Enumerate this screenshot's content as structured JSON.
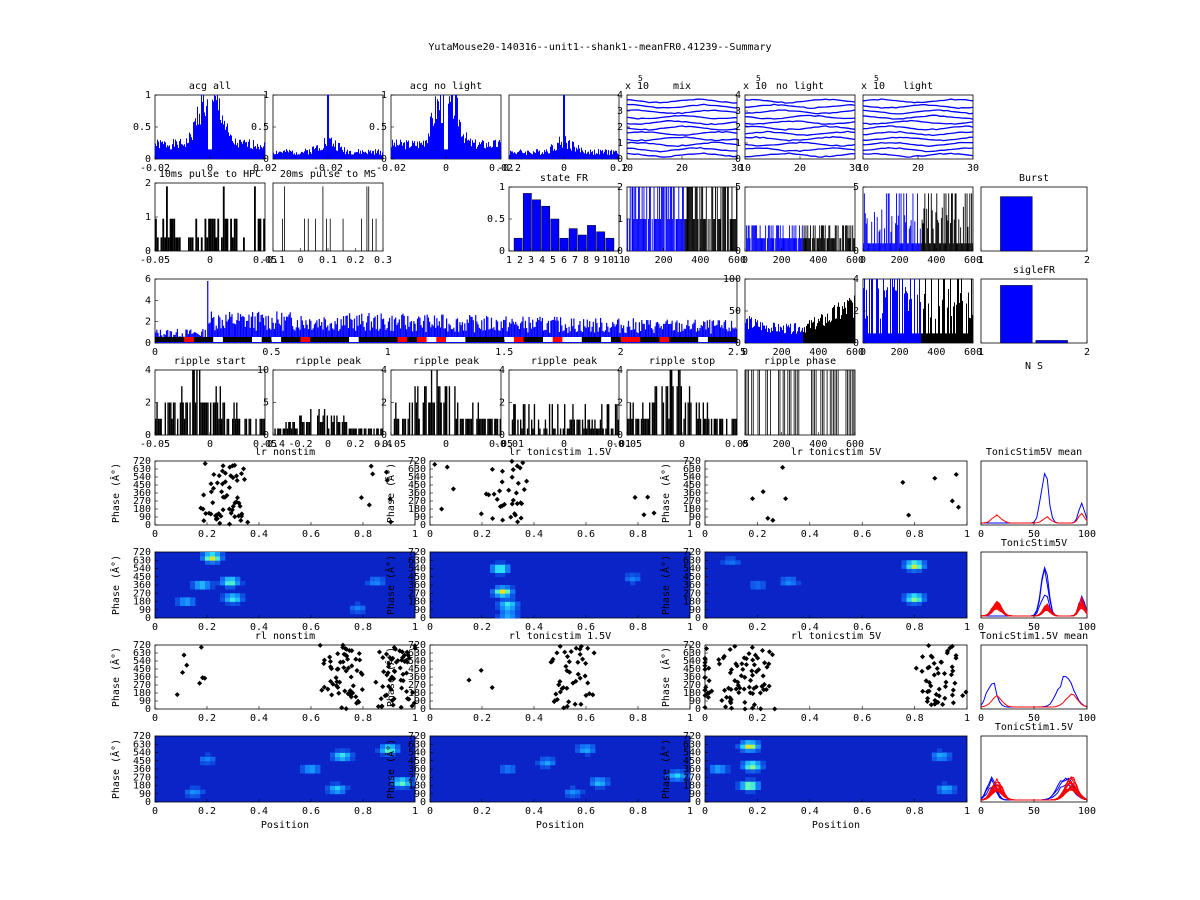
{
  "figure": {
    "title": "YutaMouse20-140316--unit1--shank1--meanFR0.41239--Summary"
  },
  "colors": {
    "blue": "#0000ff",
    "red": "#ff0000",
    "black": "#000000",
    "heat_bg": "#0a24c8",
    "heat_mid": "#22c8ff",
    "heat_hi": "#ffdc00"
  },
  "chart_data": [
    {
      "id": "acg_all",
      "type": "bar",
      "title": "acg all",
      "color": "blue",
      "seed": 1,
      "n": 110,
      "shape": "acg_wide",
      "xticks": [
        "-0.02",
        "0",
        "0.02"
      ],
      "yticks": [
        "0",
        "0.5",
        "1"
      ],
      "ylim": [
        0,
        1
      ]
    },
    {
      "id": "acg_all_light",
      "type": "bar",
      "title": "",
      "color": "blue",
      "seed": 2,
      "n": 110,
      "shape": "acg_narrow",
      "xticks": [
        "-0.02"
      ],
      "yticks": [
        "0",
        "0.5",
        "1"
      ],
      "ylim": [
        0,
        1
      ]
    },
    {
      "id": "acg_no_light",
      "type": "bar",
      "title": "acg no light",
      "color": "blue",
      "seed": 3,
      "n": 110,
      "shape": "acg_wide",
      "xticks": [
        "-0.02",
        "0",
        "0.02"
      ],
      "yticks": [
        "0",
        "0.5",
        "1"
      ],
      "ylim": [
        0,
        1
      ]
    },
    {
      "id": "acg_light",
      "type": "bar",
      "title": "",
      "color": "blue",
      "seed": 4,
      "n": 110,
      "shape": "acg_narrow",
      "xticks": [
        "-0.2",
        "0",
        "0.2"
      ],
      "yticks": [],
      "ylim": [
        0,
        1
      ]
    },
    {
      "id": "wave_mix",
      "type": "line",
      "title": "mix",
      "exponent_label": "x 10",
      "exponent": "5",
      "color": "blue",
      "seed": 5,
      "nlines": 11,
      "xticks": [
        "10",
        "20",
        "30"
      ],
      "yticks": [
        "0",
        "1",
        "2",
        "3",
        "4"
      ]
    },
    {
      "id": "wave_no_light",
      "type": "line",
      "title": "no light",
      "exponent_label": "x 10",
      "exponent": "5",
      "color": "blue",
      "seed": 6,
      "nlines": 11,
      "xticks": [
        "10",
        "20",
        "30"
      ],
      "yticks": [
        "0",
        "1",
        "2",
        "3",
        "4"
      ]
    },
    {
      "id": "wave_light",
      "type": "line",
      "title": "light",
      "exponent_label": "x 10",
      "exponent": "5",
      "color": "blue",
      "seed": 7,
      "nlines": 11,
      "xticks": [
        "10",
        "20",
        "30"
      ],
      "yticks": []
    },
    {
      "id": "pulse_hpc",
      "type": "bar",
      "title": "10ms pulse to HPC",
      "color": "black",
      "seed": 8,
      "n": 60,
      "shape": "sparse_high",
      "xticks": [
        "-0.05",
        "0",
        "0.05"
      ],
      "yticks": [
        "0",
        "1",
        "2"
      ],
      "ylim": [
        0,
        2
      ]
    },
    {
      "id": "pulse_ms",
      "type": "bar",
      "title": "20ms pulse to MS",
      "color": "black",
      "seed": 9,
      "n": 60,
      "shape": "very_sparse",
      "xticks": [
        "-0.1",
        "0",
        "0.1",
        "0.2",
        "0.3"
      ],
      "yticks": [],
      "ylim": [
        0,
        2
      ]
    },
    {
      "id": "state_fr",
      "type": "bar",
      "title": "state FR",
      "color": "blue",
      "categories": [
        "1",
        "2",
        "3",
        "4",
        "5",
        "6",
        "7",
        "8",
        "9",
        "10",
        "11"
      ],
      "values": [
        0.2,
        0.9,
        0.8,
        0.7,
        0.5,
        0.2,
        0.35,
        0.25,
        0.4,
        0.3,
        0.2
      ],
      "xticks": [
        "1",
        "2",
        "3",
        "4",
        "5",
        "6",
        "7",
        "8",
        "9",
        "10",
        "11"
      ],
      "yticks": [
        "0",
        "0.5",
        "1"
      ],
      "ylim": [
        0,
        1
      ]
    },
    {
      "id": "fr_time_1",
      "type": "bar",
      "title": "",
      "color": "split",
      "seed": 10,
      "n": 120,
      "shape": "dense",
      "xticks": [
        "0",
        "200",
        "400",
        "600"
      ],
      "yticks": [
        "0",
        "1",
        "2"
      ],
      "ylim": [
        0,
        2
      ]
    },
    {
      "id": "fr_time_2",
      "type": "bar",
      "title": "",
      "color": "split",
      "seed": 11,
      "n": 120,
      "shape": "dense",
      "xticks": [
        "0",
        "200",
        "400",
        "600"
      ],
      "yticks": [
        "0",
        "5"
      ],
      "ylim": [
        0,
        5
      ]
    },
    {
      "id": "fr_time_3",
      "type": "bar",
      "title": "",
      "color": "split",
      "seed": 12,
      "n": 120,
      "shape": "dense_sparse",
      "xticks": [
        "0",
        "200",
        "400",
        "600"
      ],
      "yticks": [
        "0",
        "5"
      ],
      "ylim": [
        0,
        5
      ]
    },
    {
      "id": "burst",
      "type": "bar",
      "title": "Burst",
      "color": "blue",
      "categories": [
        "1",
        "2"
      ],
      "values": [
        0.85,
        0
      ],
      "xticks": [
        "1",
        "2"
      ],
      "yticks": [],
      "ylim": [
        0,
        1
      ]
    },
    {
      "id": "session_fr",
      "type": "bar",
      "title": "",
      "color": "blue",
      "seed": 13,
      "n": 480,
      "shape": "session",
      "xticks": [
        "0",
        "0.5",
        "1",
        "1.5",
        "2",
        "2.5"
      ],
      "yticks": [
        "0",
        "2",
        "4",
        "6"
      ],
      "ylim": [
        0,
        6.5
      ]
    },
    {
      "id": "fr_split_a",
      "type": "bar",
      "title": "",
      "color": "split",
      "seed": 14,
      "n": 110,
      "shape": "ramp",
      "xticks": [
        "0",
        "200",
        "400",
        "600"
      ],
      "yticks": [
        "0",
        "50",
        "100"
      ],
      "ylim": [
        0,
        100
      ]
    },
    {
      "id": "fr_split_b",
      "type": "bar",
      "title": "",
      "color": "split",
      "seed": 15,
      "n": 110,
      "shape": "dense_sparse",
      "xticks": [
        "0",
        "200",
        "400",
        "600"
      ],
      "yticks": [
        "0",
        "2",
        "4"
      ],
      "ylim": [
        0,
        4
      ]
    },
    {
      "id": "sigle_fr",
      "type": "bar",
      "title": "sigleFR",
      "color": "blue",
      "categories": [
        "1",
        "2"
      ],
      "values": [
        0.9,
        0.04
      ],
      "xticks": [
        "1",
        "2"
      ],
      "xlabel": "N S",
      "yticks": [],
      "ylim": [
        0,
        1
      ]
    },
    {
      "id": "ripple_start",
      "type": "bar",
      "title": "ripple start",
      "color": "black",
      "seed": 16,
      "n": 80,
      "shape": "ripple",
      "xticks": [
        "-0.05",
        "0",
        "0.05"
      ],
      "yticks": [
        "0",
        "2",
        "4"
      ],
      "ylim": [
        0,
        4
      ]
    },
    {
      "id": "ripple_peak_1",
      "type": "bar",
      "title": "ripple peak",
      "color": "black",
      "seed": 17,
      "n": 80,
      "shape": "ripple",
      "xticks": [
        "-0.4",
        "-0.2",
        "0",
        "0.2",
        "0.4"
      ],
      "yticks": [
        "0",
        "5",
        "10"
      ],
      "ylim": [
        0,
        10
      ]
    },
    {
      "id": "ripple_peak_2",
      "type": "bar",
      "title": "ripple peak",
      "color": "black",
      "seed": 18,
      "n": 80,
      "shape": "ripple",
      "xticks": [
        "-0.05",
        "0",
        "0.05"
      ],
      "yticks": [
        "0",
        "2",
        "4"
      ],
      "ylim": [
        0,
        4
      ]
    },
    {
      "id": "ripple_peak_3",
      "type": "bar",
      "title": "ripple peak",
      "color": "black",
      "seed": 19,
      "n": 80,
      "shape": "sparse_high",
      "xticks": [
        "-0.01",
        "0",
        "0.01"
      ],
      "yticks": [
        "0",
        "2",
        "4"
      ],
      "ylim": [
        0,
        4
      ]
    },
    {
      "id": "ripple_stop",
      "type": "bar",
      "title": "ripple stop",
      "color": "black",
      "seed": 20,
      "n": 80,
      "shape": "ripple",
      "xticks": [
        "-0.05",
        "0",
        "0.05"
      ],
      "yticks": [
        "0",
        "2",
        "4"
      ],
      "ylim": [
        0,
        4
      ]
    },
    {
      "id": "ripple_phase",
      "type": "bar",
      "title": "ripple phase",
      "color": "black",
      "seed": 21,
      "n": 70,
      "shape": "phase",
      "xticks": [
        "0",
        "200",
        "400",
        "600"
      ],
      "yticks": [],
      "ylim": [
        0,
        1
      ]
    },
    {
      "id": "lr_nonstim",
      "type": "scatter",
      "title": "lr nonstim",
      "ylabel": "Phase (Â°)",
      "seed": 22,
      "clusters": [
        [
          0.27,
          60
        ],
        [
          0.85,
          8
        ]
      ],
      "xticks": [
        "0",
        "0.2",
        "0.4",
        "0.6",
        "0.8",
        "1"
      ],
      "yticks": [
        "0",
        "90",
        "180",
        "270",
        "360",
        "450",
        "540",
        "630",
        "720"
      ],
      "ylim": [
        0,
        720
      ]
    },
    {
      "id": "lr_tonicstim_1_5",
      "type": "scatter",
      "title": "lr tonicstim 1.5V",
      "ylabel": "Phase (Â°)",
      "seed": 23,
      "clusters": [
        [
          0.29,
          35
        ],
        [
          0.8,
          4
        ],
        [
          0.05,
          4
        ]
      ],
      "xticks": [
        "0",
        "0.2",
        "0.4",
        "0.6",
        "0.8",
        "1"
      ],
      "yticks": [
        "0",
        "90",
        "180",
        "270",
        "360",
        "450",
        "540",
        "630",
        "720"
      ],
      "ylim": [
        0,
        720
      ]
    },
    {
      "id": "lr_tonicstim_5",
      "type": "scatter",
      "title": "lr tonicstim 5V",
      "ylabel": "Phase (Â°)",
      "seed": 24,
      "clusters": [
        [
          0.25,
          6
        ],
        [
          0.8,
          3
        ],
        [
          0.97,
          3
        ]
      ],
      "xticks": [
        "0",
        "0.2",
        "0.4",
        "0.6",
        "0.8",
        "1"
      ],
      "yticks": [
        "0",
        "90",
        "180",
        "270",
        "360",
        "450",
        "540",
        "630",
        "720"
      ],
      "ylim": [
        0,
        720
      ]
    },
    {
      "id": "tonic5v_mean",
      "type": "line",
      "title": "TonicStim5V mean",
      "color": "mix",
      "seed": 25,
      "nlines": 2,
      "mode": "tuning",
      "xticks": [
        "0",
        "50",
        "100"
      ],
      "yticks": []
    },
    {
      "id": "heat_lr_nonstim",
      "type": "heatmap",
      "title": "",
      "ylabel": "Phase (Â°)",
      "seed": 26,
      "blobs": [
        [
          0.22,
          0.92,
          1.0
        ],
        [
          0.29,
          0.55,
          0.8
        ],
        [
          0.3,
          0.3,
          0.7
        ],
        [
          0.18,
          0.5,
          0.6
        ],
        [
          0.12,
          0.25,
          0.5
        ],
        [
          0.85,
          0.55,
          0.4
        ],
        [
          0.78,
          0.15,
          0.35
        ]
      ],
      "xticks": [
        "0",
        "0.2",
        "0.4",
        "0.6",
        "0.8",
        "1"
      ],
      "yticks": [
        "0",
        "90",
        "180",
        "270",
        "360",
        "450",
        "540",
        "630",
        "720"
      ]
    },
    {
      "id": "heat_lr_1_5",
      "type": "heatmap",
      "title": "",
      "ylabel": "Phase (Â°)",
      "seed": 27,
      "blobs": [
        [
          0.28,
          0.4,
          1.0
        ],
        [
          0.27,
          0.75,
          0.8
        ],
        [
          0.3,
          0.2,
          0.7
        ],
        [
          0.78,
          0.6,
          0.35
        ],
        [
          0.3,
          0.05,
          0.5
        ]
      ],
      "xticks": [
        "0",
        "0.2",
        "0.4",
        "0.6",
        "0.8",
        "1"
      ],
      "yticks": [
        "0",
        "90",
        "180",
        "270",
        "360",
        "450",
        "540",
        "630",
        "720"
      ]
    },
    {
      "id": "heat_lr_5",
      "type": "heatmap",
      "title": "",
      "ylabel": "Phase (Â°)",
      "seed": 28,
      "blobs": [
        [
          0.8,
          0.8,
          1.0
        ],
        [
          0.8,
          0.3,
          0.9
        ],
        [
          0.32,
          0.55,
          0.4
        ],
        [
          0.1,
          0.85,
          0.3
        ],
        [
          0.2,
          0.5,
          0.3
        ]
      ],
      "xticks": [
        "0",
        "0.2",
        "0.4",
        "0.6",
        "0.8",
        "1"
      ],
      "yticks": [
        "0",
        "90",
        "180",
        "270",
        "360",
        "450",
        "540",
        "630",
        "720"
      ]
    },
    {
      "id": "tonic5v",
      "type": "line",
      "title": "TonicStim5V",
      "color": "mix",
      "seed": 29,
      "nlines": 18,
      "mode": "tuning",
      "xticks": [
        "0",
        "50",
        "100"
      ],
      "yticks": []
    },
    {
      "id": "rl_nonstim",
      "type": "scatter",
      "title": "rl nonstim",
      "ylabel": "Phase (Â°)",
      "seed": 30,
      "clusters": [
        [
          0.72,
          60
        ],
        [
          0.93,
          60
        ],
        [
          0.15,
          8
        ]
      ],
      "xticks": [
        "0",
        "0.2",
        "0.4",
        "0.6",
        "0.8",
        "1"
      ],
      "yticks": [
        "0",
        "90",
        "180",
        "270",
        "360",
        "450",
        "540",
        "630",
        "720"
      ],
      "ylim": [
        0,
        720
      ]
    },
    {
      "id": "rl_tonicstim_1_5",
      "type": "scatter",
      "title": "rl tonicstim 1.5V",
      "ylabel": "Phase (Â°)",
      "seed": 31,
      "clusters": [
        [
          0.55,
          45
        ],
        [
          0.2,
          3
        ]
      ],
      "xticks": [
        "0",
        "0.2",
        "0.4",
        "0.6",
        "0.8",
        "1"
      ],
      "yticks": [
        "0",
        "90",
        "180",
        "270",
        "360",
        "450",
        "540",
        "630",
        "720"
      ],
      "ylim": [
        0,
        720
      ]
    },
    {
      "id": "rl_tonicstim_5",
      "type": "scatter",
      "title": "rl tonicstim 5V",
      "ylabel": "Phase (Â°)",
      "seed": 32,
      "clusters": [
        [
          0.18,
          60
        ],
        [
          0.9,
          50
        ],
        [
          0.02,
          30
        ]
      ],
      "xticks": [
        "0",
        "0.2",
        "0.4",
        "0.6",
        "0.8",
        "1"
      ],
      "yticks": [
        "0",
        "90",
        "180",
        "270",
        "360",
        "450",
        "540",
        "630",
        "720"
      ],
      "ylim": [
        0,
        720
      ]
    },
    {
      "id": "tonic1_5v_mean",
      "type": "line",
      "title": "TonicStim1.5V mean",
      "color": "mix",
      "seed": 33,
      "nlines": 2,
      "mode": "tuning_b",
      "xticks": [
        "0",
        "50",
        "100"
      ],
      "yticks": []
    },
    {
      "id": "heat_rl_nonstim",
      "type": "heatmap",
      "title": "",
      "ylabel": "Phase (Â°)",
      "xlabel": "Position",
      "seed": 34,
      "blobs": [
        [
          0.72,
          0.7,
          0.7
        ],
        [
          0.9,
          0.8,
          0.8
        ],
        [
          0.95,
          0.3,
          0.8
        ],
        [
          0.7,
          0.2,
          0.6
        ],
        [
          0.6,
          0.5,
          0.5
        ],
        [
          0.15,
          0.15,
          0.4
        ],
        [
          0.2,
          0.65,
          0.35
        ]
      ],
      "xticks": [
        "0",
        "0.2",
        "0.4",
        "0.6",
        "0.8",
        "1"
      ],
      "yticks": [
        "0",
        "90",
        "180",
        "270",
        "360",
        "450",
        "540",
        "630",
        "720"
      ]
    },
    {
      "id": "heat_rl_1_5",
      "type": "heatmap",
      "title": "",
      "ylabel": "Phase (Â°)",
      "xlabel": "Position",
      "seed": 35,
      "blobs": [
        [
          0.6,
          0.8,
          0.5
        ],
        [
          0.65,
          0.3,
          0.55
        ],
        [
          0.45,
          0.6,
          0.45
        ],
        [
          0.55,
          0.15,
          0.4
        ],
        [
          0.95,
          0.4,
          0.6
        ],
        [
          0.3,
          0.5,
          0.35
        ]
      ],
      "xticks": [
        "0",
        "0.2",
        "0.4",
        "0.6",
        "0.8",
        "1"
      ],
      "yticks": [
        "0",
        "90",
        "180",
        "270",
        "360",
        "450",
        "540",
        "630",
        "720"
      ]
    },
    {
      "id": "heat_rl_5",
      "type": "heatmap",
      "title": "",
      "ylabel": "Phase (Â°)",
      "xlabel": "Position",
      "seed": 36,
      "blobs": [
        [
          0.17,
          0.85,
          1.0
        ],
        [
          0.18,
          0.55,
          0.9
        ],
        [
          0.17,
          0.25,
          0.95
        ],
        [
          0.9,
          0.7,
          0.5
        ],
        [
          0.92,
          0.2,
          0.5
        ],
        [
          0.05,
          0.5,
          0.5
        ]
      ],
      "xticks": [
        "0",
        "0.2",
        "0.4",
        "0.6",
        "0.8",
        "1"
      ],
      "yticks": [
        "0",
        "90",
        "180",
        "270",
        "360",
        "450",
        "540",
        "630",
        "720"
      ]
    },
    {
      "id": "tonic1_5v",
      "type": "line",
      "title": "TonicStim1.5V",
      "color": "mix",
      "seed": 37,
      "nlines": 18,
      "mode": "tuning_b",
      "xticks": [
        "0",
        "50",
        "100"
      ],
      "yticks": []
    }
  ]
}
